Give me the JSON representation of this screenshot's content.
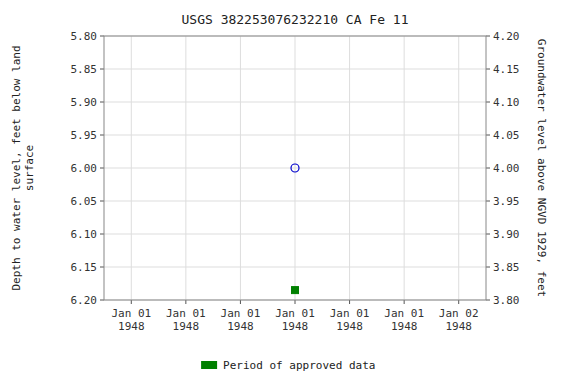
{
  "chart_data": {
    "type": "scatter",
    "title": "USGS 382253076232210 CA Fe  11",
    "y_label": "Depth to water level, feet below land\nsurface",
    "y2_label": "Groundwater level above NGVD 1929, feet",
    "categories": [
      "Jan 01\n1948",
      "Jan 01\n1948",
      "Jan 01\n1948",
      "Jan 01\n1948",
      "Jan 01\n1948",
      "Jan 01\n1948",
      "Jan 02\n1948"
    ],
    "series": [
      {
        "color": "#0000cc",
        "marker": "circle",
        "values": [
          null,
          null,
          null,
          6.0,
          null,
          null,
          null
        ]
      },
      {
        "name": "Period of approved data",
        "color": "#008000",
        "marker": "square",
        "values": [
          null,
          null,
          null,
          6.185,
          null,
          null,
          null
        ]
      }
    ],
    "ylim": [
      6.2,
      5.8
    ],
    "yticks": [
      {
        "value": 5.8,
        "label": "5.80"
      },
      {
        "value": 5.85,
        "label": "5.85"
      },
      {
        "value": 5.9,
        "label": "5.90"
      },
      {
        "value": 5.95,
        "label": "5.95"
      },
      {
        "value": 6.0,
        "label": "6.00"
      },
      {
        "value": 6.05,
        "label": "6.05"
      },
      {
        "value": 6.1,
        "label": "6.10"
      },
      {
        "value": 6.15,
        "label": "6.15"
      },
      {
        "value": 6.2,
        "label": "6.20"
      }
    ],
    "y2lim": [
      3.8,
      4.2
    ],
    "y2ticks": [
      {
        "value": 3.8,
        "label": "3.80"
      },
      {
        "value": 3.85,
        "label": "3.85"
      },
      {
        "value": 3.9,
        "label": "3.90"
      },
      {
        "value": 3.95,
        "label": "3.95"
      },
      {
        "value": 4.0,
        "label": "4.00"
      },
      {
        "value": 4.05,
        "label": "4.05"
      },
      {
        "value": 4.1,
        "label": "4.10"
      },
      {
        "value": 4.15,
        "label": "4.15"
      },
      {
        "value": 4.2,
        "label": "4.20"
      }
    ],
    "grid": true,
    "legend": "bottom"
  }
}
